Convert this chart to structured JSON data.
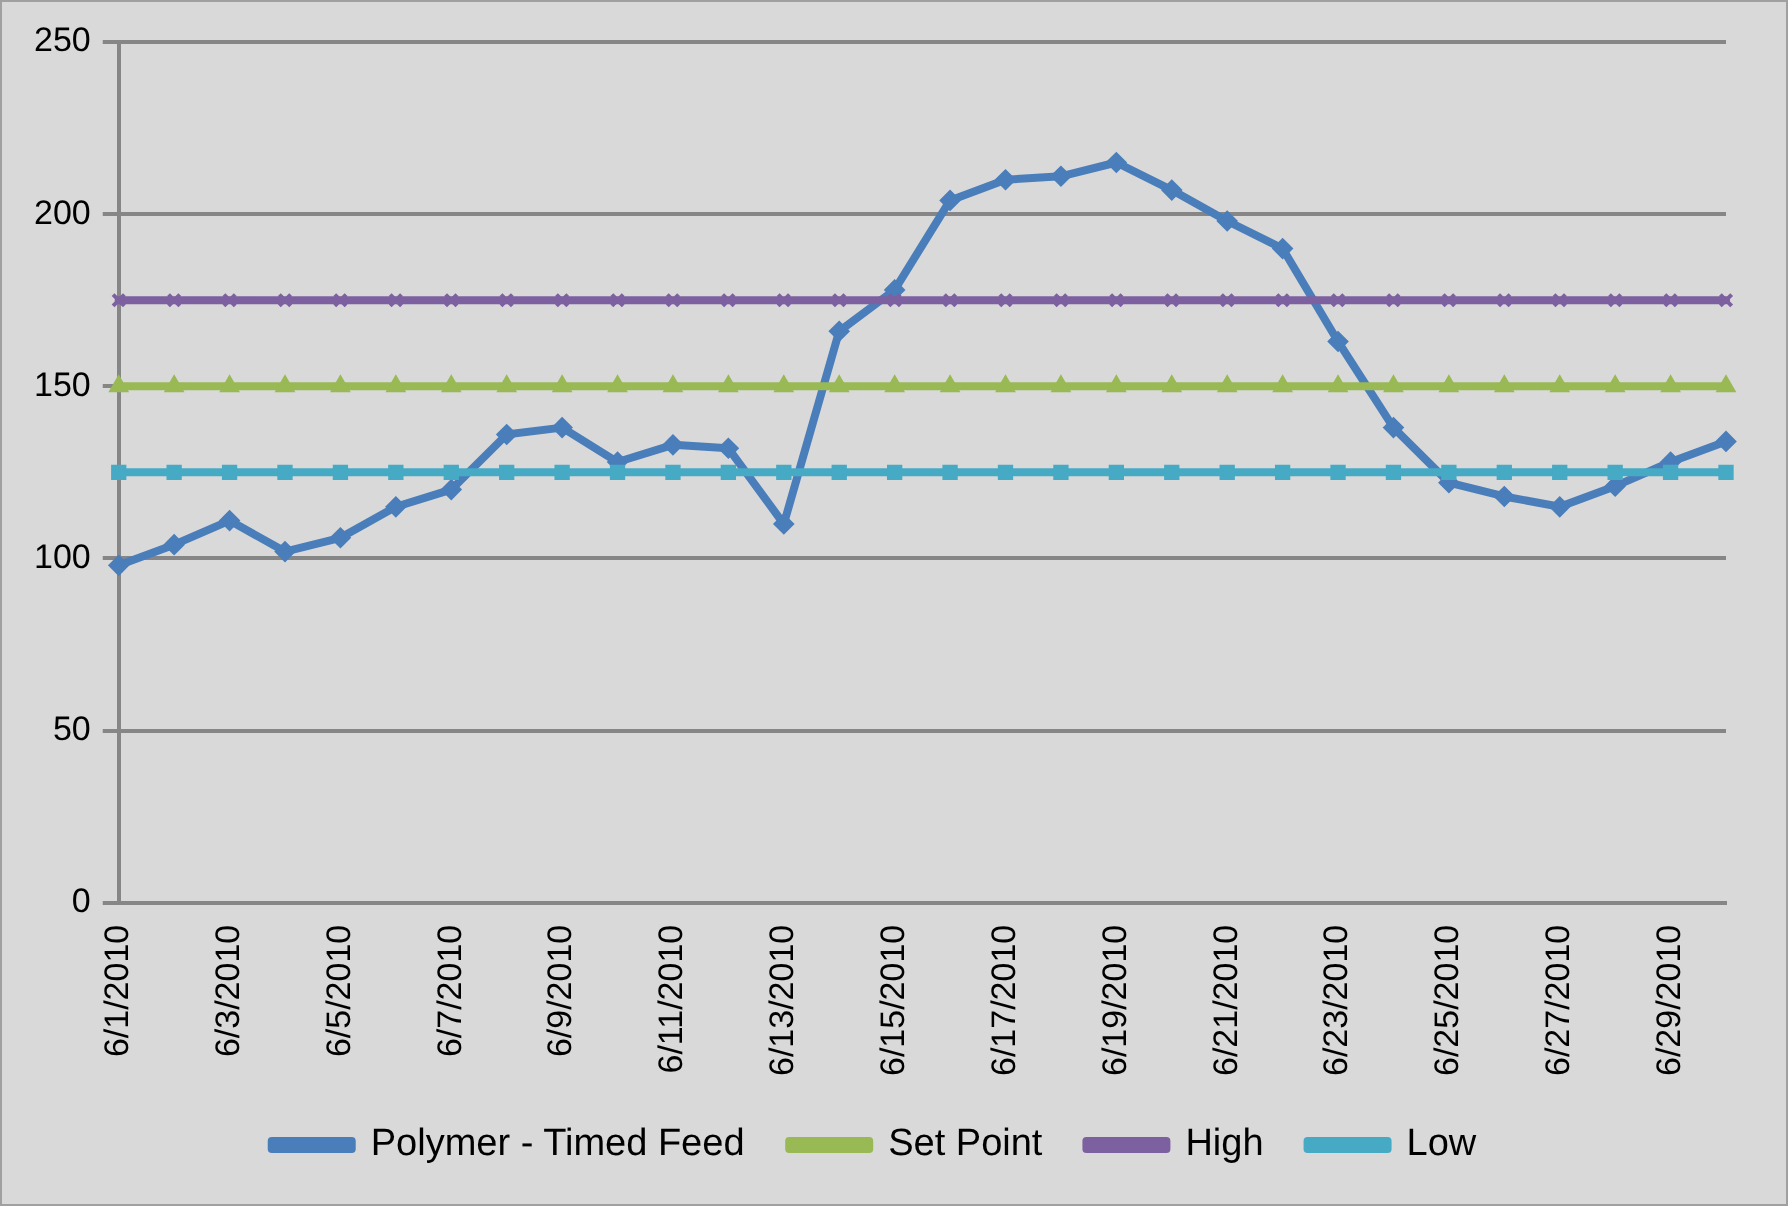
{
  "chart_data": {
    "type": "line",
    "categories": [
      "6/1/2010",
      null,
      "6/3/2010",
      null,
      "6/5/2010",
      null,
      "6/7/2010",
      null,
      "6/9/2010",
      null,
      "6/11/2010",
      null,
      "6/13/2010",
      null,
      "6/15/2010",
      null,
      "6/17/2010",
      null,
      "6/19/2010",
      null,
      "6/21/2010",
      null,
      "6/23/2010",
      null,
      "6/25/2010",
      null,
      "6/27/2010",
      null,
      "6/29/2010",
      null
    ],
    "series": [
      {
        "name": "Polymer - Timed Feed",
        "color": "#4a7ebb",
        "marker": "diamond",
        "values": [
          98,
          104,
          111,
          102,
          106,
          115,
          120,
          136,
          138,
          128,
          133,
          132,
          110,
          166,
          178,
          204,
          210,
          211,
          215,
          207,
          198,
          190,
          163,
          138,
          122,
          118,
          115,
          121,
          128,
          134
        ]
      },
      {
        "name": "Set Point",
        "color": "#98b954",
        "marker": "triangle",
        "values": [
          150,
          150,
          150,
          150,
          150,
          150,
          150,
          150,
          150,
          150,
          150,
          150,
          150,
          150,
          150,
          150,
          150,
          150,
          150,
          150,
          150,
          150,
          150,
          150,
          150,
          150,
          150,
          150,
          150,
          150
        ]
      },
      {
        "name": "High",
        "color": "#7d60a0",
        "marker": "cross",
        "values": [
          175,
          175,
          175,
          175,
          175,
          175,
          175,
          175,
          175,
          175,
          175,
          175,
          175,
          175,
          175,
          175,
          175,
          175,
          175,
          175,
          175,
          175,
          175,
          175,
          175,
          175,
          175,
          175,
          175,
          175
        ]
      },
      {
        "name": "Low",
        "color": "#46aac5",
        "marker": "square",
        "values": [
          125,
          125,
          125,
          125,
          125,
          125,
          125,
          125,
          125,
          125,
          125,
          125,
          125,
          125,
          125,
          125,
          125,
          125,
          125,
          125,
          125,
          125,
          125,
          125,
          125,
          125,
          125,
          125,
          125,
          125
        ]
      }
    ],
    "ylim": [
      0,
      250
    ],
    "yticks": [
      0,
      50,
      100,
      150,
      200,
      250
    ],
    "grid": "y",
    "legend": "bottom"
  }
}
